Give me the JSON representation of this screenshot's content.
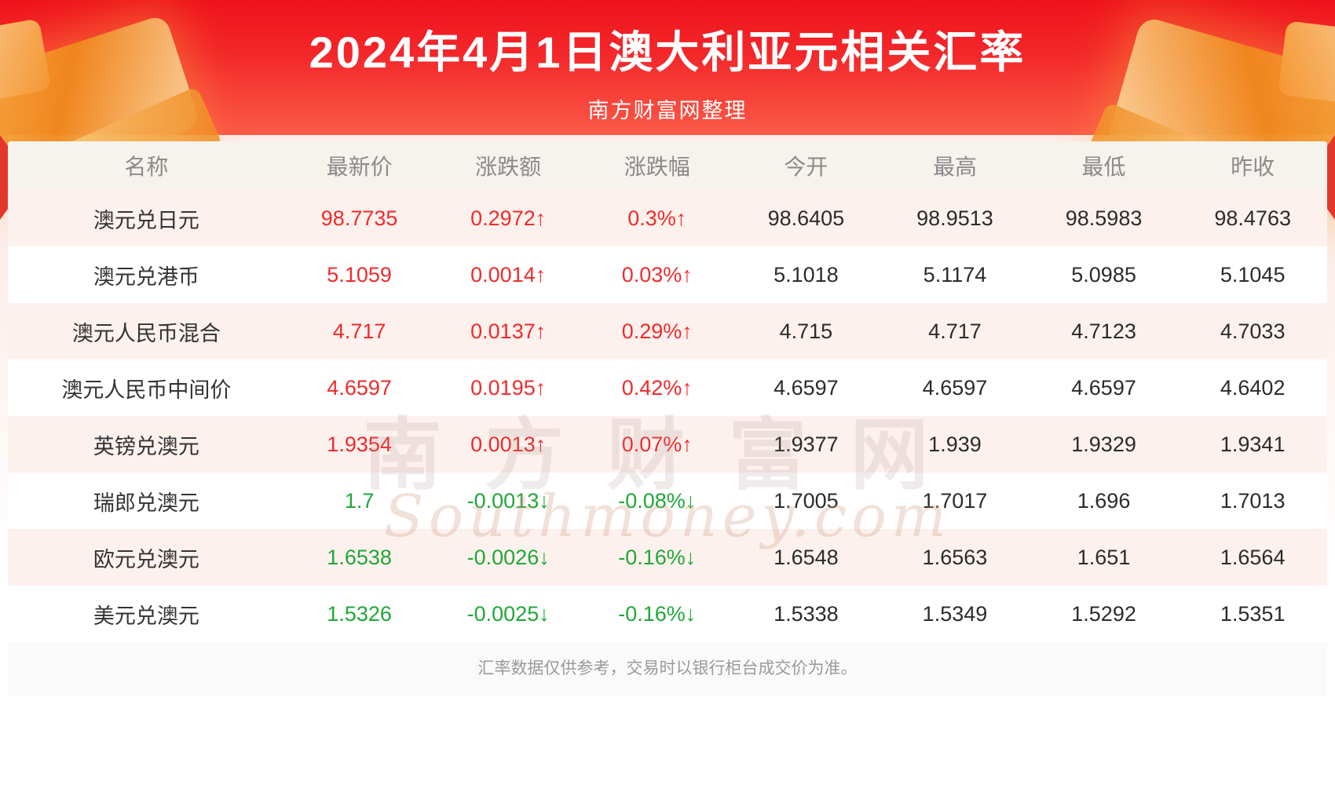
{
  "header": {
    "title": "2024年4月1日澳大利亚元相关汇率",
    "subtitle": "南方财富网整理"
  },
  "watermark": {
    "cn": "南方财富网",
    "en": "Southmoney.com"
  },
  "footer": {
    "note": "汇率数据仅供参考，交易时以银行柜台成交价为准。"
  },
  "icons": {
    "up_arrow": "↑",
    "down_arrow": "↓"
  },
  "colors": {
    "up": "#f02b2b",
    "down": "#1fa837",
    "banner_red": "#ee131c",
    "banner_red_light": "#fb5a47",
    "header_row_bg": "#f6f2ec",
    "row_alt_pink": "#fdf1ee",
    "gold_decoration": "#f08a1d"
  },
  "chart_data": {
    "type": "table",
    "title": "2024年4月1日澳大利亚元相关汇率",
    "columns": [
      "名称",
      "最新价",
      "涨跌额",
      "涨跌幅",
      "今开",
      "最高",
      "最低",
      "昨收"
    ],
    "rows": [
      {
        "name": "澳元兑日元",
        "latest": "98.7735",
        "change": "0.2972",
        "change_dir": "up",
        "pct": "0.3%",
        "open": "98.6405",
        "high": "98.9513",
        "low": "98.5983",
        "prev_close": "98.4763"
      },
      {
        "name": "澳元兑港币",
        "latest": "5.1059",
        "change": "0.0014",
        "change_dir": "up",
        "pct": "0.03%",
        "open": "5.1018",
        "high": "5.1174",
        "low": "5.0985",
        "prev_close": "5.1045"
      },
      {
        "name": "澳元人民币混合",
        "latest": "4.717",
        "change": "0.0137",
        "change_dir": "up",
        "pct": "0.29%",
        "open": "4.715",
        "high": "4.717",
        "low": "4.7123",
        "prev_close": "4.7033"
      },
      {
        "name": "澳元人民币中间价",
        "latest": "4.6597",
        "change": "0.0195",
        "change_dir": "up",
        "pct": "0.42%",
        "open": "4.6597",
        "high": "4.6597",
        "low": "4.6597",
        "prev_close": "4.6402"
      },
      {
        "name": "英镑兑澳元",
        "latest": "1.9354",
        "change": "0.0013",
        "change_dir": "up",
        "pct": "0.07%",
        "open": "1.9377",
        "high": "1.939",
        "low": "1.9329",
        "prev_close": "1.9341"
      },
      {
        "name": "瑞郎兑澳元",
        "latest": "1.7",
        "change": "-0.0013",
        "change_dir": "down",
        "pct": "-0.08%",
        "open": "1.7005",
        "high": "1.7017",
        "low": "1.696",
        "prev_close": "1.7013"
      },
      {
        "name": "欧元兑澳元",
        "latest": "1.6538",
        "change": "-0.0026",
        "change_dir": "down",
        "pct": "-0.16%",
        "open": "1.6548",
        "high": "1.6563",
        "low": "1.651",
        "prev_close": "1.6564"
      },
      {
        "name": "美元兑澳元",
        "latest": "1.5326",
        "change": "-0.0025",
        "change_dir": "down",
        "pct": "-0.16%",
        "open": "1.5338",
        "high": "1.5349",
        "low": "1.5292",
        "prev_close": "1.5351"
      }
    ]
  }
}
